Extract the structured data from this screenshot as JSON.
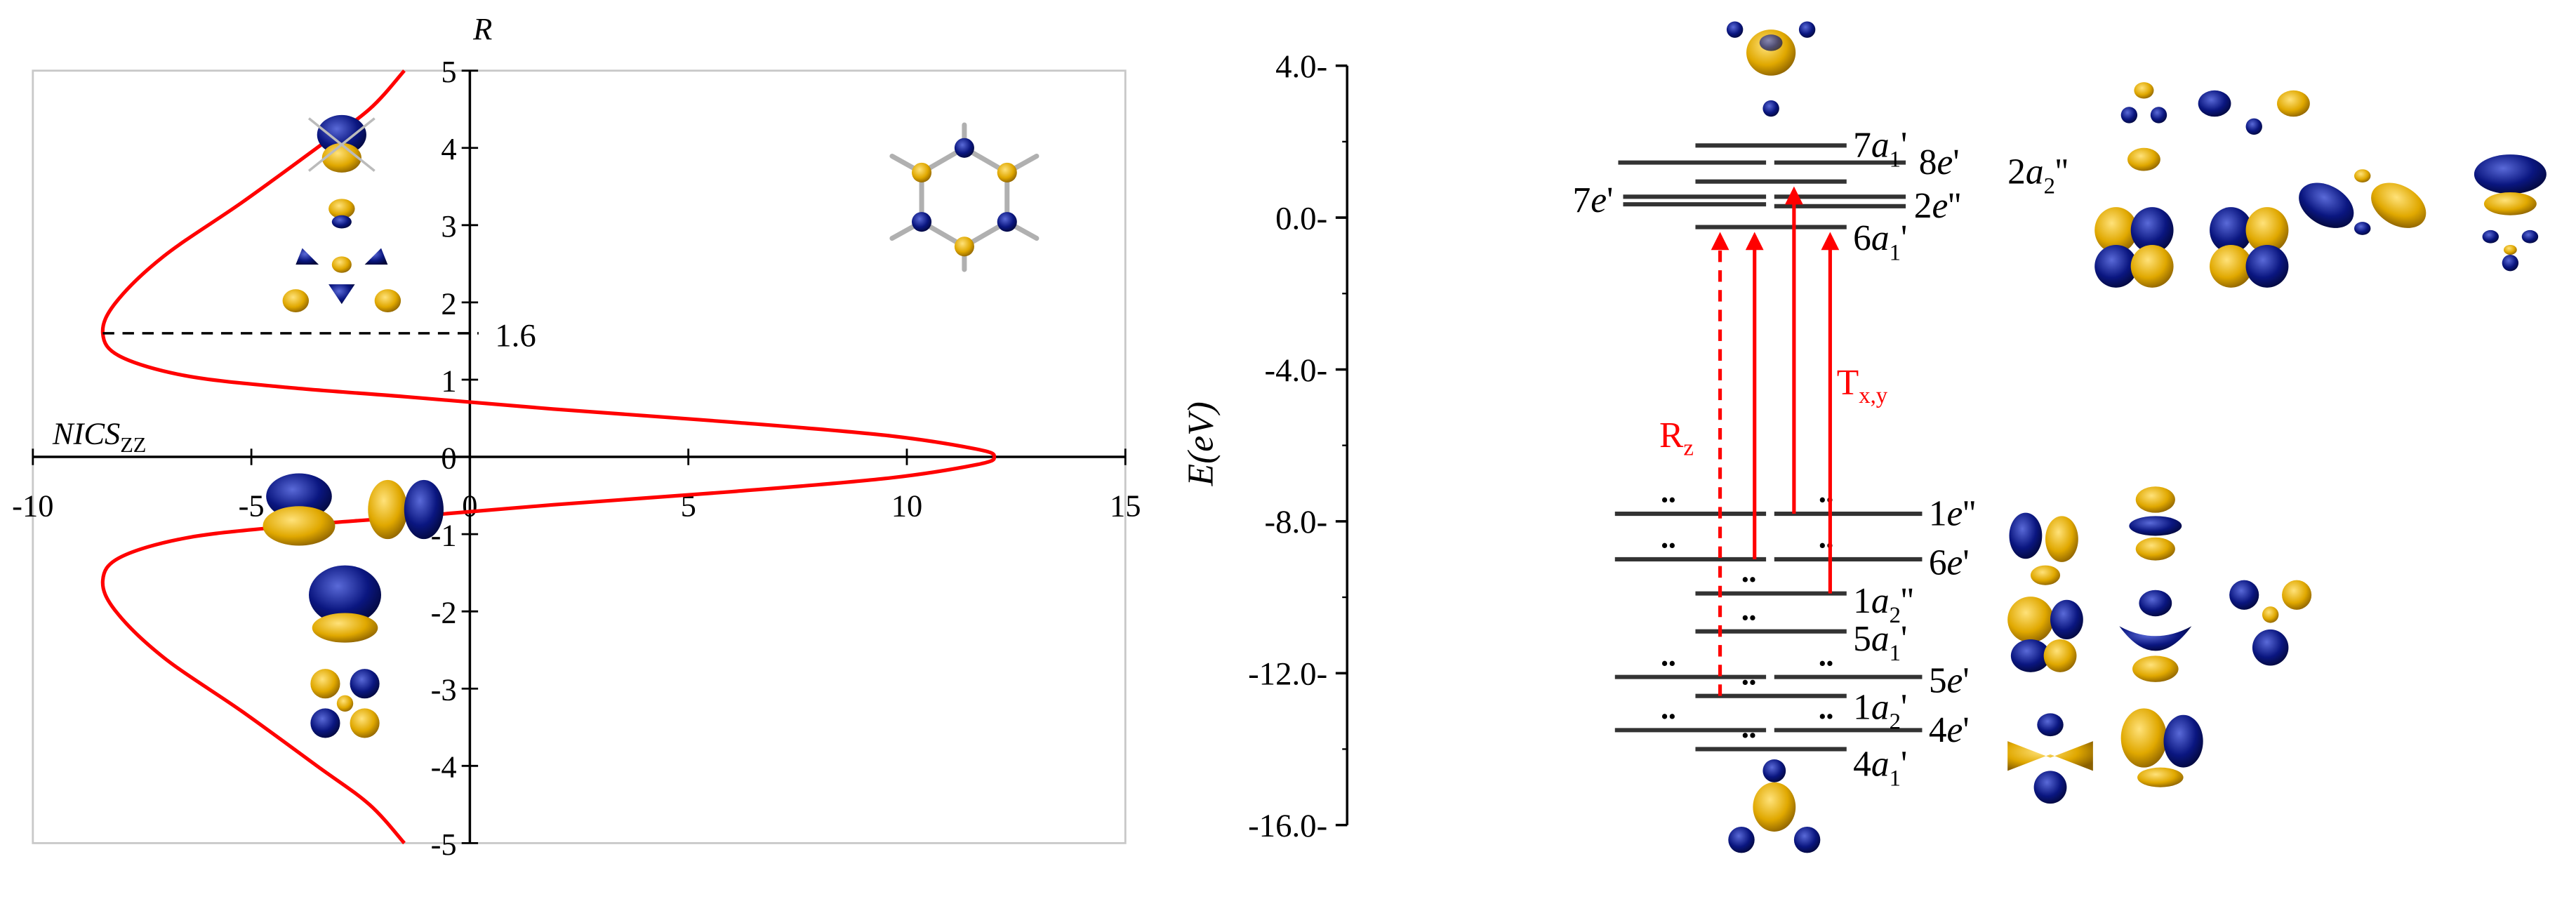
{
  "chart_data": [
    {
      "type": "line",
      "title": "",
      "xlabel": "NICS_ZZ",
      "xlabel_main": "NICS",
      "xlabel_sub": "ZZ",
      "ylabel": "R",
      "xlim": [
        -10,
        15
      ],
      "ylim": [
        -5,
        5
      ],
      "xticks": [
        -10,
        -5,
        0,
        5,
        10,
        15
      ],
      "yticks": [
        -5,
        -4,
        -3,
        -2,
        -1,
        0,
        1,
        2,
        3,
        4,
        5
      ],
      "grid": false,
      "annotations": [
        {
          "text": "1.6",
          "y": 1.6,
          "x_from": -8.4,
          "x_to": 0.2,
          "style": "dashed"
        }
      ],
      "series": [
        {
          "color": "#ff0000",
          "x": [
            -1.5,
            -2.3,
            -3.5,
            -5.2,
            -7.0,
            -8.1,
            -8.4,
            -8.0,
            -6.5,
            -4.2,
            -1.5,
            1.9,
            6.0,
            9.5,
            11.6,
            12.0,
            11.6,
            9.5,
            6.0,
            1.9,
            -1.5,
            -4.2,
            -6.5,
            -8.0,
            -8.4,
            -8.1,
            -7.0,
            -5.2,
            -3.5,
            -2.3,
            -1.5
          ],
          "y": [
            5.0,
            4.5,
            4.0,
            3.3,
            2.6,
            2.0,
            1.6,
            1.3,
            1.05,
            0.9,
            0.78,
            0.62,
            0.45,
            0.28,
            0.1,
            0.0,
            -0.1,
            -0.28,
            -0.45,
            -0.62,
            -0.78,
            -0.9,
            -1.05,
            -1.3,
            -1.6,
            -2.0,
            -2.6,
            -3.3,
            -4.0,
            -4.5,
            -5.0
          ]
        }
      ]
    },
    {
      "type": "energy-level-diagram",
      "ylabel": "E(eV)",
      "ylim": [
        -16.0,
        4.0
      ],
      "yticks": [
        "4.0",
        "0.0",
        "-4.0",
        "-8.0",
        "-12.0",
        "-16.0"
      ],
      "tick_values": [
        4.0,
        0.0,
        -4.0,
        -8.0,
        -12.0,
        -16.0
      ],
      "levels": [
        {
          "label": "7a",
          "sub": "1",
          "prime": "'",
          "energy": 1.9,
          "lines": [
            {
              "x": [
                1032,
                1124
              ],
              "y": 1.9
            }
          ]
        },
        {
          "label": "8e",
          "sub": "",
          "prime": "'",
          "energy": 1.4,
          "lines": [
            {
              "x": [
                985,
                1075
              ],
              "y": 1.45
            },
            {
              "x": [
                1080,
                1160
              ],
              "y": 1.45
            }
          ]
        },
        {
          "label": "7e",
          "sub": "",
          "prime": "'",
          "energy": 0.4,
          "lines": [
            {
              "x": [
                988,
                1075
              ],
              "y": 0.55
            },
            {
              "x": [
                988,
                1075
              ],
              "y": 0.35
            }
          ]
        },
        {
          "label": "2e",
          "sub": "",
          "prime": "''",
          "energy": 0.3,
          "lines": [
            {
              "x": [
                1080,
                1160
              ],
              "y": 0.55
            },
            {
              "x": [
                1080,
                1160
              ],
              "y": 0.3
            }
          ]
        },
        {
          "label": "2a",
          "sub": "2",
          "prime": "''",
          "energy": 0.9,
          "lines": [
            {
              "x": [
                1032,
                1124
              ],
              "y": 0.95
            }
          ]
        },
        {
          "label": "6a",
          "sub": "1",
          "prime": "'",
          "energy": -0.3,
          "lines": [
            {
              "x": [
                1032,
                1124
              ],
              "y": -0.25
            }
          ]
        },
        {
          "label": "1e",
          "sub": "",
          "prime": "''",
          "energy": -7.8,
          "lines": [
            {
              "x": [
                983,
                1075
              ],
              "y": -7.8
            },
            {
              "x": [
                1080,
                1170
              ],
              "y": -7.8
            }
          ]
        },
        {
          "label": "6e",
          "sub": "",
          "prime": "'",
          "energy": -9.0,
          "lines": [
            {
              "x": [
                983,
                1075
              ],
              "y": -9.0
            },
            {
              "x": [
                1080,
                1170
              ],
              "y": -9.0
            }
          ]
        },
        {
          "label": "1a",
          "sub": "2",
          "prime": "''",
          "energy": -9.9,
          "lines": [
            {
              "x": [
                1032,
                1124
              ],
              "y": -9.9
            }
          ]
        },
        {
          "label": "5a",
          "sub": "1",
          "prime": "'",
          "energy": -10.9,
          "lines": [
            {
              "x": [
                1032,
                1124
              ],
              "y": -10.9
            }
          ]
        },
        {
          "label": "5e",
          "sub": "",
          "prime": "'",
          "energy": -12.1,
          "lines": [
            {
              "x": [
                983,
                1075
              ],
              "y": -12.1
            },
            {
              "x": [
                1080,
                1170
              ],
              "y": -12.1
            }
          ]
        },
        {
          "label": "1a",
          "sub": "2",
          "prime": "'",
          "energy": -12.6,
          "lines": [
            {
              "x": [
                1032,
                1124
              ],
              "y": -12.6
            }
          ]
        },
        {
          "label": "4e",
          "sub": "",
          "prime": "'",
          "energy": -13.5,
          "lines": [
            {
              "x": [
                983,
                1075
              ],
              "y": -13.5
            },
            {
              "x": [
                1080,
                1170
              ],
              "y": -13.5
            }
          ]
        },
        {
          "label": "4a",
          "sub": "1",
          "prime": "'",
          "energy": -14.0,
          "lines": [
            {
              "x": [
                1032,
                1124
              ],
              "y": -14.0
            }
          ]
        }
      ],
      "transitions": [
        {
          "name": "R_z",
          "from": -12.6,
          "to": -0.3,
          "style": "dashed",
          "color": "#ff0000"
        },
        {
          "name": "T_x,y",
          "from": -9.0,
          "to": -0.3,
          "style": "solid",
          "color": "#ff0000"
        },
        {
          "name": "T_x,y",
          "from": -7.8,
          "to": 0.9,
          "style": "solid",
          "color": "#ff0000"
        },
        {
          "name": "T_x,y",
          "from": -9.9,
          "to": -0.3,
          "style": "solid",
          "color": "#ff0000"
        }
      ],
      "transition_labels": {
        "rz_main": "R",
        "rz_sub": "z",
        "txy_main": "T",
        "txy_sub": "x,y"
      }
    }
  ],
  "colors": {
    "curve": "#ff0000",
    "orbital_gold": "#e0a800",
    "orbital_blue": "#0a1680",
    "axis": "#000000"
  },
  "icons": {
    "molecule": "triazine-molecule-icon",
    "orbitals": "molecular-orbital-icon"
  }
}
